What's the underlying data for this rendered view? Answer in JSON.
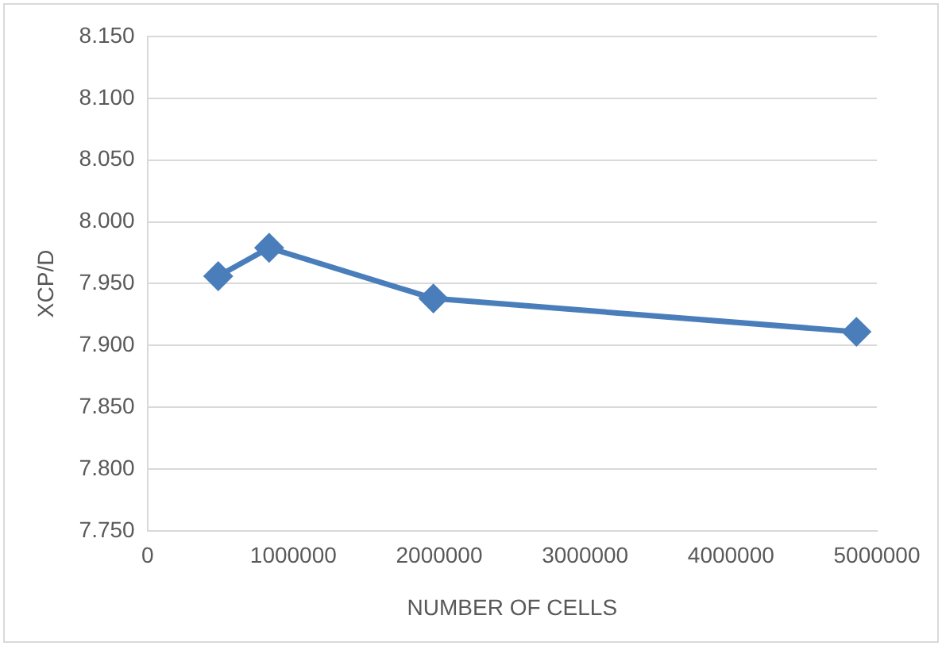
{
  "chart_data": {
    "type": "line",
    "xlabel": "NUMBER OF CELLS",
    "ylabel": "XCP/D",
    "x": [
      485000,
      834000,
      1960000,
      4860000
    ],
    "series": [
      {
        "color": "#4a7ebb",
        "values": [
          7.956,
          7.979,
          7.938,
          7.911
        ]
      }
    ],
    "xlim": [
      0,
      5000000
    ],
    "xticks": [
      0,
      1000000,
      2000000,
      3000000,
      4000000,
      5000000
    ],
    "ylim": [
      7.75,
      8.15
    ],
    "yticks": [
      {
        "value": 7.75,
        "label": "7.750"
      },
      {
        "value": 7.8,
        "label": "7.800"
      },
      {
        "value": 7.85,
        "label": "7.850"
      },
      {
        "value": 7.9,
        "label": "7.900"
      },
      {
        "value": 7.95,
        "label": "7.950"
      },
      {
        "value": 8,
        "label": "8.000"
      },
      {
        "value": 8.05,
        "label": "8.050"
      },
      {
        "value": 8.1,
        "label": "8.100"
      },
      {
        "value": 8.15,
        "label": "8.150"
      }
    ],
    "grid": "y",
    "marker": "diamond",
    "line_style": "solid",
    "legend": false
  }
}
